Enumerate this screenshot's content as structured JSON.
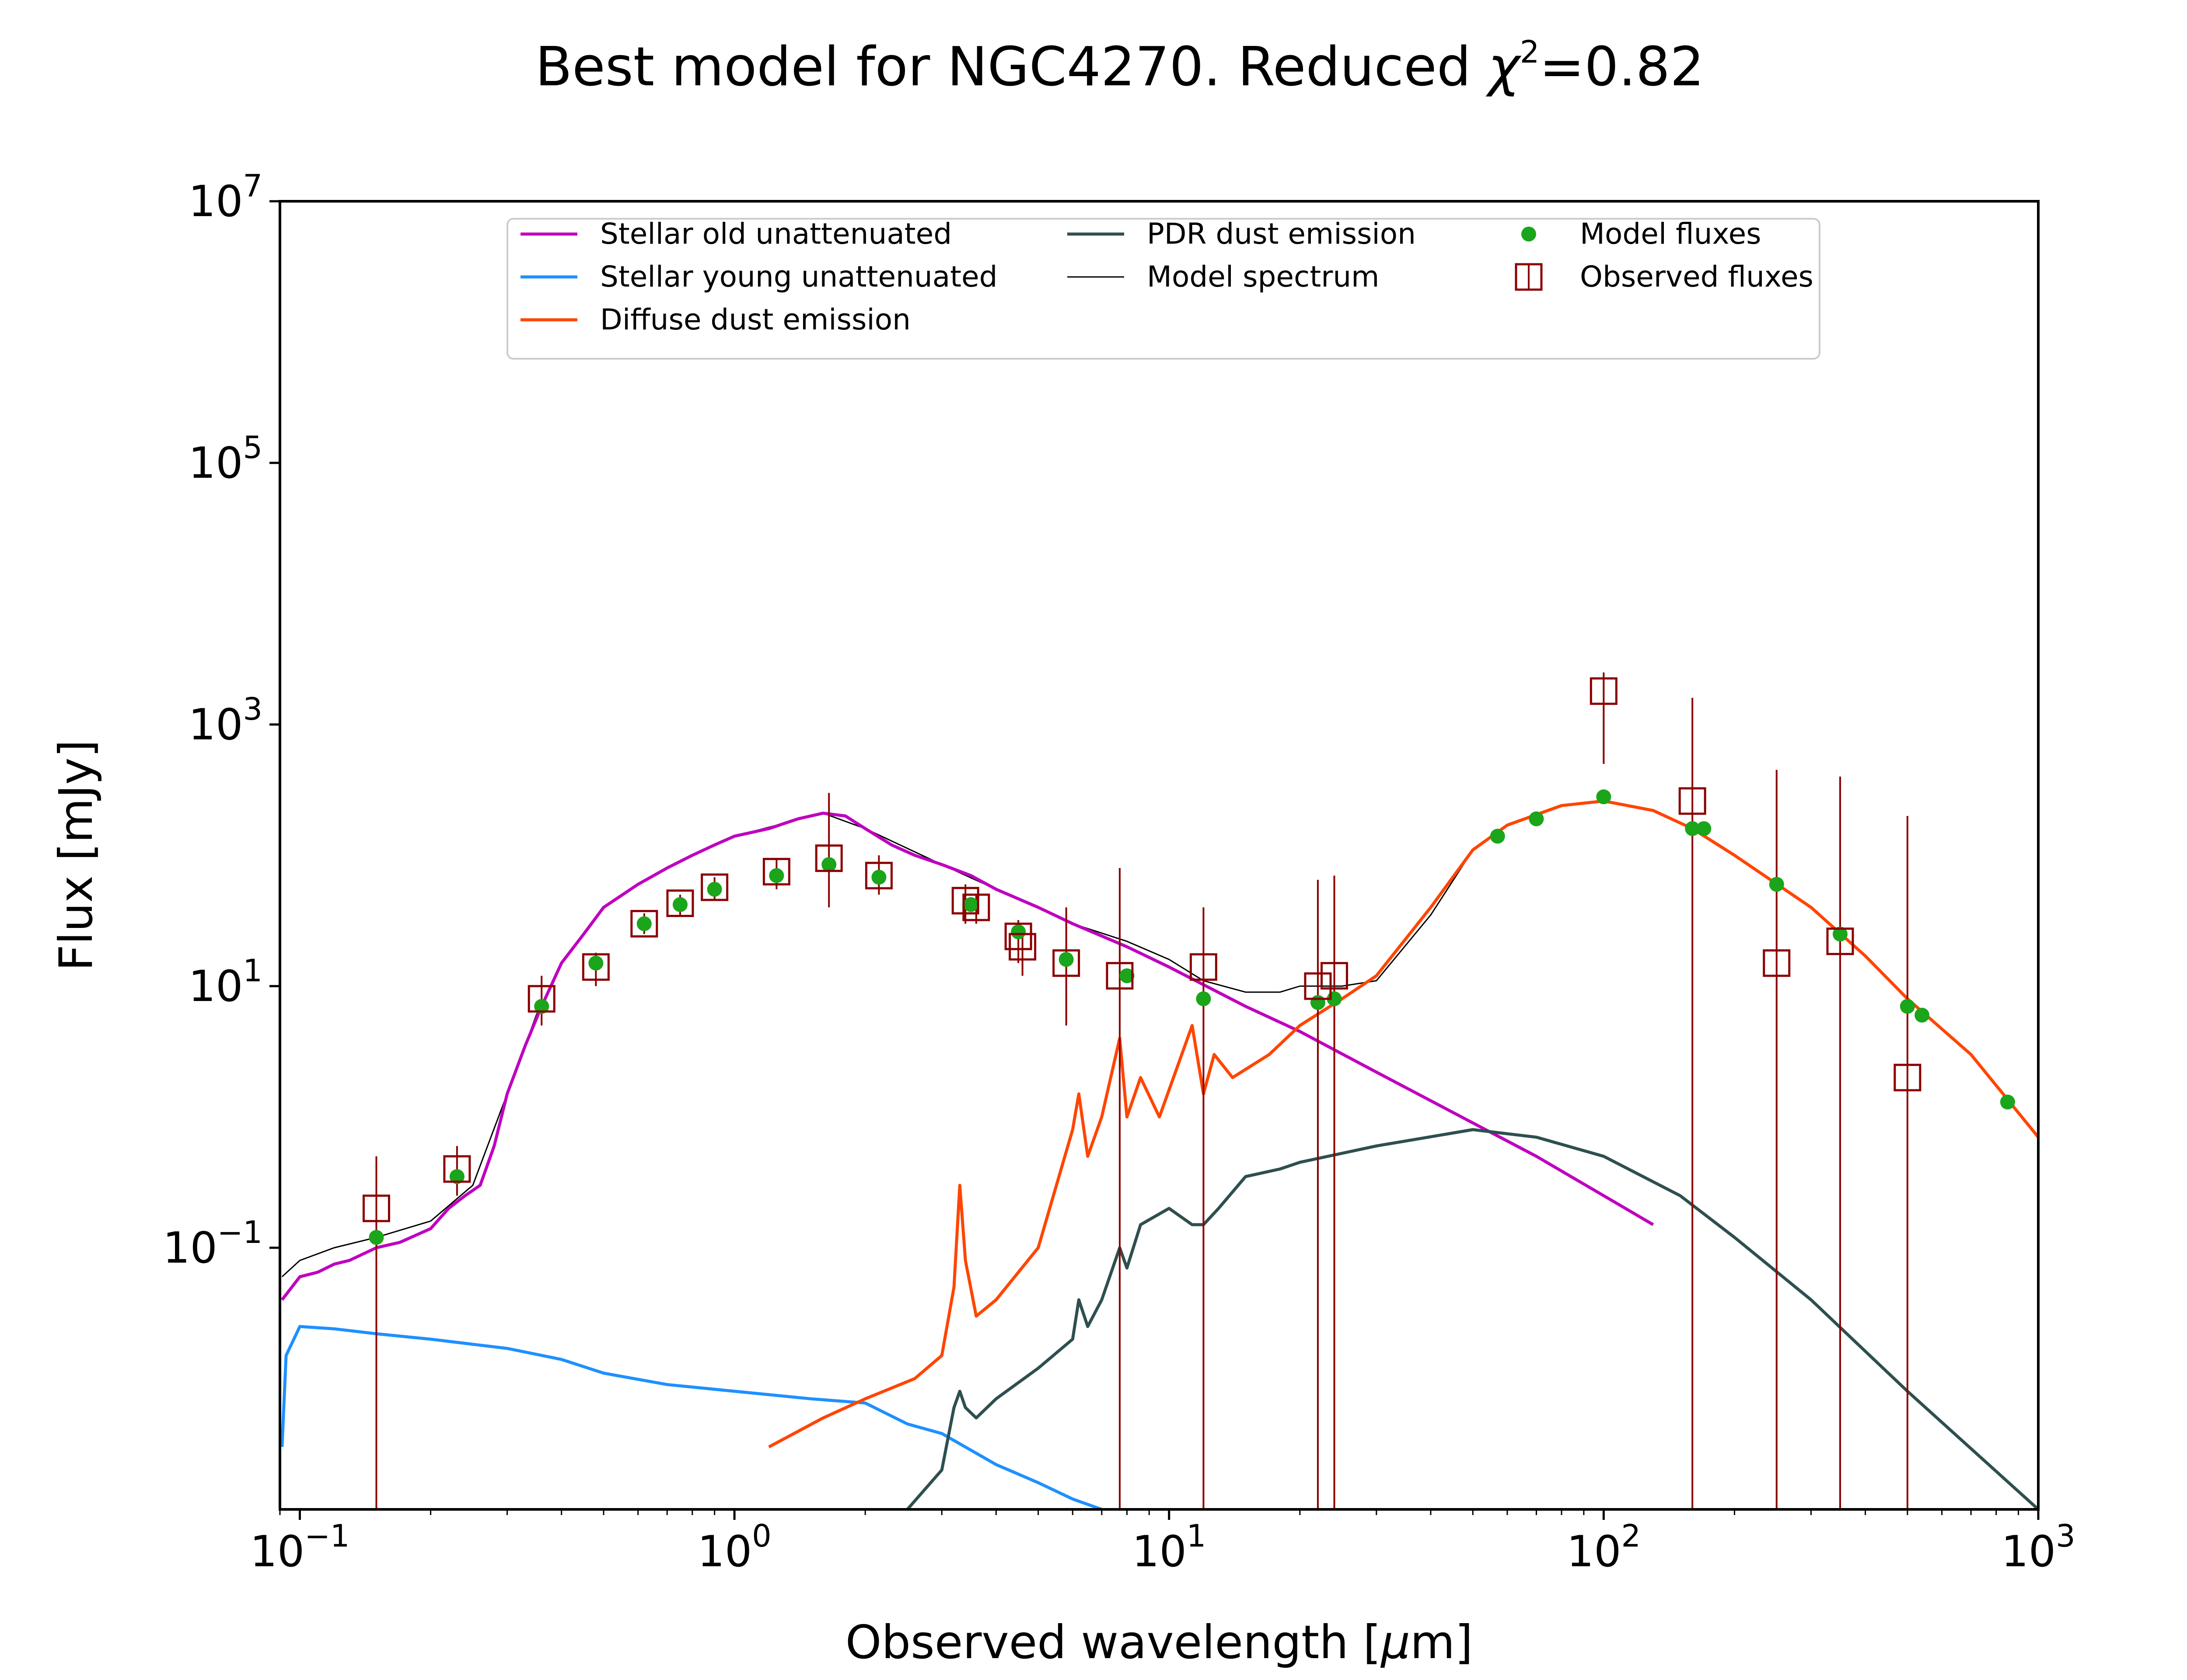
{
  "chart_data": {
    "type": "line",
    "title": "Best model for NGC4270. Reduced χ²=0.82",
    "title_parts": {
      "prefix": "Best model for NGC4270. Reduced ",
      "chi": "χ",
      "sup": "2",
      "suffix": "=0.82"
    },
    "xlabel": "Observed wavelength [μm]",
    "xlabel_parts": {
      "prefix": "Observed wavelength [",
      "mu": "μ",
      "suffix": "m]"
    },
    "ylabel": "Flux [mJy]",
    "x_scale": "log",
    "y_scale": "log",
    "xlim": [
      0.09,
      1000
    ],
    "ylim": [
      0.001,
      10000000
    ],
    "x_ticks": [
      {
        "value": 0.1,
        "base": "10",
        "exp": "−1"
      },
      {
        "value": 1,
        "base": "10",
        "exp": "0"
      },
      {
        "value": 10,
        "base": "10",
        "exp": "1"
      },
      {
        "value": 100,
        "base": "10",
        "exp": "2"
      },
      {
        "value": 1000,
        "base": "10",
        "exp": "3"
      }
    ],
    "y_ticks": [
      {
        "value": 0.1,
        "base": "10",
        "exp": "−1"
      },
      {
        "value": 10,
        "base": "10",
        "exp": "1"
      },
      {
        "value": 1000,
        "base": "10",
        "exp": "3"
      },
      {
        "value": 100000,
        "base": "10",
        "exp": "5"
      },
      {
        "value": 10000000,
        "base": "10",
        "exp": "7"
      }
    ],
    "legend_position": "top-center",
    "legend": [
      {
        "label": "Stellar old unattenuated",
        "kind": "line",
        "color": "#bf00bf"
      },
      {
        "label": "Stellar young unattenuated",
        "kind": "line",
        "color": "#1e90ff"
      },
      {
        "label": "Diffuse dust emission",
        "kind": "line",
        "color": "#ff4500"
      },
      {
        "label": "PDR dust emission",
        "kind": "line",
        "color": "#2f4f4f"
      },
      {
        "label": "Model spectrum",
        "kind": "thin-line",
        "color": "#000000"
      },
      {
        "label": "Model fluxes",
        "kind": "dot",
        "color": "#1aa51a"
      },
      {
        "label": "Observed fluxes",
        "kind": "square",
        "color": "#8b0000"
      }
    ],
    "series": [
      {
        "name": "Stellar old unattenuated",
        "color": "#bf00bf",
        "x": [
          0.091,
          0.1,
          0.11,
          0.12,
          0.13,
          0.15,
          0.17,
          0.2,
          0.22,
          0.24,
          0.26,
          0.28,
          0.3,
          0.33,
          0.36,
          0.4,
          0.45,
          0.5,
          0.6,
          0.7,
          0.8,
          0.9,
          1.0,
          1.2,
          1.4,
          1.6,
          1.8,
          2.0,
          2.3,
          2.6,
          3.0,
          3.5,
          4.0,
          5.0,
          6.0,
          8.0,
          10,
          15,
          20,
          30,
          50,
          70,
          100,
          130
        ],
        "y": [
          0.04,
          0.06,
          0.065,
          0.075,
          0.08,
          0.1,
          0.11,
          0.14,
          0.2,
          0.25,
          0.3,
          0.6,
          1.5,
          3.5,
          7,
          15,
          25,
          40,
          60,
          80,
          100,
          120,
          140,
          160,
          190,
          210,
          200,
          160,
          120,
          100,
          85,
          70,
          55,
          40,
          30,
          20,
          14,
          7,
          4.5,
          2.2,
          0.9,
          0.5,
          0.25,
          0.15
        ]
      },
      {
        "name": "Stellar young unattenuated",
        "color": "#1e90ff",
        "x": [
          0.091,
          0.093,
          0.1,
          0.12,
          0.15,
          0.2,
          0.3,
          0.4,
          0.5,
          0.7,
          1.0,
          1.5,
          2.0,
          2.5,
          3.0,
          4.0,
          5.0,
          6.0,
          7.0
        ],
        "y": [
          0.003,
          0.015,
          0.025,
          0.024,
          0.022,
          0.02,
          0.017,
          0.014,
          0.011,
          0.009,
          0.008,
          0.007,
          0.0065,
          0.0045,
          0.0038,
          0.0022,
          0.0016,
          0.0012,
          0.001
        ]
      },
      {
        "name": "Diffuse dust emission",
        "color": "#ff4500",
        "x": [
          1.2,
          1.6,
          2.0,
          2.6,
          3.0,
          3.2,
          3.3,
          3.4,
          3.6,
          4.0,
          5.0,
          6.0,
          6.2,
          6.5,
          7.0,
          7.7,
          8.0,
          8.6,
          9.5,
          11.3,
          12.0,
          12.7,
          14,
          17,
          20,
          25,
          30,
          40,
          50,
          60,
          80,
          100,
          130,
          160,
          200,
          300,
          400,
          500,
          700,
          1000
        ],
        "y": [
          0.003,
          0.005,
          0.007,
          0.01,
          0.015,
          0.05,
          0.3,
          0.08,
          0.03,
          0.04,
          0.1,
          0.8,
          1.5,
          0.5,
          1,
          4,
          1,
          2,
          1,
          5,
          1.5,
          3,
          2,
          3,
          5,
          8,
          12,
          40,
          110,
          170,
          240,
          260,
          220,
          160,
          100,
          40,
          17,
          8,
          3,
          0.7
        ]
      },
      {
        "name": "PDR dust emission",
        "color": "#2f4f4f",
        "x": [
          2.5,
          3.0,
          3.2,
          3.3,
          3.4,
          3.6,
          4.0,
          5.0,
          6.0,
          6.2,
          6.5,
          7.0,
          7.7,
          8.0,
          8.6,
          10,
          11.3,
          12,
          13,
          15,
          18,
          20,
          30,
          50,
          70,
          100,
          150,
          200,
          300,
          500,
          1000
        ],
        "y": [
          0.001,
          0.002,
          0.006,
          0.008,
          0.006,
          0.005,
          0.007,
          0.012,
          0.02,
          0.04,
          0.025,
          0.04,
          0.1,
          0.07,
          0.15,
          0.2,
          0.15,
          0.15,
          0.2,
          0.35,
          0.4,
          0.45,
          0.6,
          0.8,
          0.7,
          0.5,
          0.25,
          0.12,
          0.04,
          0.008,
          0.001
        ]
      },
      {
        "name": "Model spectrum",
        "color": "#000000",
        "x": [
          0.091,
          0.1,
          0.12,
          0.15,
          0.2,
          0.25,
          0.3,
          0.35,
          0.4,
          0.5,
          0.6,
          0.8,
          1.0,
          1.6,
          2.0,
          3.0,
          4.0,
          5.0,
          6.0,
          8.0,
          10,
          12,
          15,
          18,
          20,
          25,
          30,
          40,
          50,
          60,
          80,
          100,
          130,
          160,
          200,
          300,
          400,
          500,
          700,
          1000
        ],
        "y": [
          0.06,
          0.08,
          0.1,
          0.12,
          0.16,
          0.3,
          1.5,
          6,
          15,
          40,
          60,
          100,
          140,
          210,
          160,
          85,
          55,
          40,
          30,
          22,
          16,
          11,
          9,
          9,
          10,
          10,
          11,
          35,
          110,
          170,
          240,
          260,
          220,
          160,
          100,
          40,
          17,
          8,
          3,
          0.7
        ]
      }
    ],
    "model_fluxes": {
      "x": [
        0.15,
        0.23,
        0.36,
        0.48,
        0.62,
        0.75,
        0.9,
        1.25,
        1.65,
        2.15,
        3.5,
        4.5,
        5.8,
        8.0,
        12,
        22,
        24,
        57,
        70,
        100,
        160,
        170,
        250,
        350,
        500,
        540,
        850
      ],
      "y": [
        0.12,
        0.35,
        7,
        15,
        30,
        42,
        55,
        70,
        85,
        68,
        42,
        26,
        16,
        12,
        8,
        7.5,
        8,
        140,
        190,
        280,
        160,
        160,
        60,
        25,
        7,
        6,
        1.3
      ]
    },
    "observed_fluxes": {
      "x": [
        0.15,
        0.23,
        0.36,
        0.48,
        0.62,
        0.75,
        0.9,
        1.25,
        1.65,
        2.15,
        3.4,
        3.6,
        4.5,
        4.6,
        5.8,
        7.7,
        12,
        22,
        24,
        100,
        160,
        250,
        350,
        500
      ],
      "y": [
        0.2,
        0.4,
        8,
        14,
        30,
        43,
        57,
        75,
        95,
        70,
        45,
        40,
        24,
        20,
        15,
        12,
        14,
        10,
        12,
        1800,
        260,
        15,
        22,
        2
      ],
      "err_low": [
        0.001,
        0.25,
        5,
        10,
        25,
        35,
        45,
        55,
        40,
        50,
        30,
        30,
        15,
        12,
        5,
        0.001,
        0.001,
        0.001,
        0.001,
        500,
        0.001,
        0.001,
        0.001,
        0.001
      ],
      "err_high": [
        0.5,
        0.6,
        12,
        18,
        36,
        50,
        68,
        95,
        300,
        100,
        60,
        50,
        32,
        28,
        40,
        80,
        40,
        65,
        70,
        2500,
        1600,
        450,
        400,
        200
      ]
    }
  }
}
